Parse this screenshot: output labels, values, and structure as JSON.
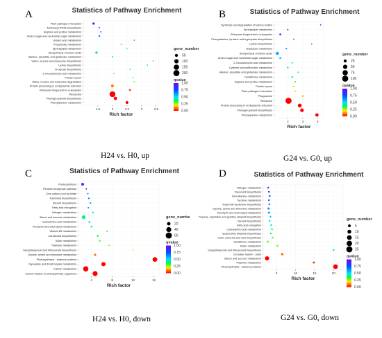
{
  "chart_data": [
    {
      "type": "scatter",
      "panel_label": "A",
      "title": "Statistics of Pathway Enrichment",
      "xlabel": "Rich factor",
      "caption": "H24 vs. H0, up",
      "xticks": [
        1.5,
        2.0,
        2.5,
        3.0,
        3.5
      ],
      "xtick_labels": [
        "1.5",
        "2",
        "2.5",
        "3",
        "3.5"
      ],
      "xlim": [
        1.0,
        3.6
      ],
      "size_title": "gene_number",
      "size_levels": [
        50,
        100,
        150,
        200
      ],
      "color_title": "qvalue",
      "color_levels": [
        1.0,
        0.75,
        0.5,
        0.25,
        0.0
      ],
      "color_level_labels": [
        "1.00",
        "0.75",
        "0.50",
        "0.25",
        "0.00"
      ],
      "size_range": [
        0,
        200
      ],
      "points": [
        {
          "category": "Plant-pathogen interaction",
          "x": 1.35,
          "gene_number": 28,
          "qvalue": 0.95
        },
        {
          "category": "Aminoacyl-tRNA biosynthesis",
          "x": 1.55,
          "gene_number": 10,
          "qvalue": 0.8
        },
        {
          "category": "Arginine and proline metabolism",
          "x": 1.6,
          "gene_number": 8,
          "qvalue": 0.75
        },
        {
          "category": "Amino sugar and nucleotide sugar metabolism",
          "x": 1.55,
          "gene_number": 14,
          "qvalue": 0.7
        },
        {
          "category": "Linoleic acid metabolism",
          "x": 2.75,
          "gene_number": 5,
          "qvalue": 0.6
        },
        {
          "category": "Propanoate metabolism",
          "x": 2.3,
          "gene_number": 6,
          "qvalue": 0.55
        },
        {
          "category": "Sphingolipid metabolism",
          "x": 2.5,
          "gene_number": 7,
          "qvalue": 0.5
        },
        {
          "category": "Biosynthesis of amino acids",
          "x": 1.45,
          "gene_number": 30,
          "qvalue": 0.45
        },
        {
          "category": "Alanine, aspartate and glutamate metabolism",
          "x": 2.0,
          "gene_number": 10,
          "qvalue": 0.45
        },
        {
          "category": "Valine, leucine and isoleucine biosynthesis",
          "x": 3.4,
          "gene_number": 5,
          "qvalue": 0.4
        },
        {
          "category": "Lysine biosynthesis",
          "x": 3.2,
          "gene_number": 5,
          "qvalue": 0.35
        },
        {
          "category": "N-Glycan biosynthesis",
          "x": 2.6,
          "gene_number": 8,
          "qvalue": 0.35
        },
        {
          "category": "2-Oxocarboxylic acid metabolism",
          "x": 2.05,
          "gene_number": 10,
          "qvalue": 0.3
        },
        {
          "category": "Protein export",
          "x": 2.7,
          "gene_number": 7,
          "qvalue": 0.3
        },
        {
          "category": "Valine, leucine and isoleucine degradation",
          "x": 2.75,
          "gene_number": 10,
          "qvalue": 0.25
        },
        {
          "category": "Protein processing in endoplasmic reticulum",
          "x": 2.0,
          "gene_number": 40,
          "qvalue": 0.1
        },
        {
          "category": "Ribosome biogenesis in eukaryotes",
          "x": 2.6,
          "gene_number": 20,
          "qvalue": 0.05
        },
        {
          "category": "Ribosome",
          "x": 2.0,
          "gene_number": 180,
          "qvalue": 0.0
        },
        {
          "category": "Phenylpropanoid biosynthesis",
          "x": 2.1,
          "gene_number": 60,
          "qvalue": 0.0
        },
        {
          "category": "Phenylalanine metabolism",
          "x": 2.5,
          "gene_number": 45,
          "qvalue": 0.0
        }
      ]
    },
    {
      "type": "scatter",
      "panel_label": "B",
      "title": "Statistics of Pathway Enrichment",
      "xlabel": "Rich factor",
      "caption": "G24 vs. G0, up",
      "xticks": [
        2,
        3,
        4
      ],
      "xtick_labels": [
        "2",
        "3",
        "4"
      ],
      "xlim": [
        1.1,
        4.4
      ],
      "size_title": "gene_number",
      "size_levels": [
        25,
        50,
        75,
        100
      ],
      "color_title": "qvalue",
      "color_levels": [
        1.0,
        0.75,
        0.5,
        0.25,
        0.0
      ],
      "color_level_labels": [
        "1.00",
        "0.75",
        "0.50",
        "0.25",
        "0.00"
      ],
      "size_range": [
        0,
        100
      ],
      "points": [
        {
          "category": "Synthesis and degradation of ketone bodies",
          "x": 4.2,
          "gene_number": 3,
          "qvalue": 0.9
        },
        {
          "category": "Sphingolipid metabolism",
          "x": 2.0,
          "gene_number": 5,
          "qvalue": 0.85
        },
        {
          "category": "Ribosome biogenesis in eukaryotes",
          "x": 1.5,
          "gene_number": 10,
          "qvalue": 0.8
        },
        {
          "category": "Phenylalanine, tyrosine and tryptophan biosynthesis",
          "x": 2.4,
          "gene_number": 4,
          "qvalue": 0.75
        },
        {
          "category": "Lysine biosynthesis",
          "x": 3.6,
          "gene_number": 3,
          "qvalue": 0.7
        },
        {
          "category": "Galactose metabolism",
          "x": 1.9,
          "gene_number": 6,
          "qvalue": 0.65
        },
        {
          "category": "Biosynthesis of amino acids",
          "x": 1.3,
          "gene_number": 25,
          "qvalue": 0.6
        },
        {
          "category": "Amino sugar and nucleotide sugar metabolism",
          "x": 1.5,
          "gene_number": 10,
          "qvalue": 0.55
        },
        {
          "category": "2-Oxocarboxylic acid metabolism",
          "x": 2.3,
          "gene_number": 6,
          "qvalue": 0.5
        },
        {
          "category": "Cysteine and methionine metabolism",
          "x": 2.0,
          "gene_number": 7,
          "qvalue": 0.45
        },
        {
          "category": "Alanine, aspartate and glutamate metabolism",
          "x": 2.7,
          "gene_number": 5,
          "qvalue": 0.4
        },
        {
          "category": "Glutathione metabolism",
          "x": 2.3,
          "gene_number": 8,
          "qvalue": 0.35
        },
        {
          "category": "Arginine and proline metabolism",
          "x": 2.5,
          "gene_number": 7,
          "qvalue": 0.3
        },
        {
          "category": "Protein export",
          "x": 2.4,
          "gene_number": 6,
          "qvalue": 0.25
        },
        {
          "category": "Plant-pathogen interaction",
          "x": 2.5,
          "gene_number": 8,
          "qvalue": 0.2
        },
        {
          "category": "Phagosome",
          "x": 3.0,
          "gene_number": 8,
          "qvalue": 0.15
        },
        {
          "category": "Ribosome",
          "x": 2.05,
          "gene_number": 100,
          "qvalue": 0.0
        },
        {
          "category": "Protein processing in endoplasmic reticulum",
          "x": 2.8,
          "gene_number": 40,
          "qvalue": 0.0
        },
        {
          "category": "Phenylpropanoid biosynthesis",
          "x": 2.95,
          "gene_number": 35,
          "qvalue": 0.0
        },
        {
          "category": "Phenylalanine metabolism",
          "x": 3.95,
          "gene_number": 30,
          "qvalue": 0.0
        }
      ]
    },
    {
      "type": "scatter",
      "panel_label": "C",
      "title": "Statistics of Pathway Enrichment",
      "xlabel": "Rich factor",
      "caption": "H24 vs. H0, down",
      "xticks": [
        4,
        8,
        12,
        16
      ],
      "xtick_labels": [
        "4",
        "8",
        "12",
        "16"
      ],
      "xlim": [
        1.5,
        17.0
      ],
      "size_title": "gene_numbe",
      "size_levels": [
        20,
        40,
        60
      ],
      "color_title": "qvalue",
      "color_levels": [
        1.0,
        0.75,
        0.5,
        0.25,
        0.0
      ],
      "color_level_labels": [
        "1.00",
        "0.75",
        "0.50",
        "0.25",
        "0.00"
      ],
      "size_range": [
        0,
        60
      ],
      "points": [
        {
          "category": "Photosynthesis",
          "x": 2.3,
          "gene_number": 12,
          "qvalue": 0.9
        },
        {
          "category": "Pentose phosphate pathway",
          "x": 3.0,
          "gene_number": 3,
          "qvalue": 0.75
        },
        {
          "category": "One carbon pool by folate",
          "x": 3.3,
          "gene_number": 3,
          "qvalue": 0.72
        },
        {
          "category": "Flavonoid biosynthesis",
          "x": 3.5,
          "gene_number": 4,
          "qvalue": 0.68
        },
        {
          "category": "Steroid biosynthesis",
          "x": 3.8,
          "gene_number": 4,
          "qvalue": 0.62
        },
        {
          "category": "Fatty acid elongation",
          "x": 3.4,
          "gene_number": 4,
          "qvalue": 0.58
        },
        {
          "category": "Nitrogen metabolism",
          "x": 4.3,
          "gene_number": 4,
          "qvalue": 0.52
        },
        {
          "category": "Starch and sucrose metabolism",
          "x": 2.5,
          "gene_number": 22,
          "qvalue": 0.4
        },
        {
          "category": "Cyanoamino acid metabolism",
          "x": 3.6,
          "gene_number": 5,
          "qvalue": 0.45
        },
        {
          "category": "Porphyrin and chlorophyll metabolism",
          "x": 4.0,
          "gene_number": 5,
          "qvalue": 0.42
        },
        {
          "category": "Vitamin B6 metabolism",
          "x": 7.0,
          "gene_number": 3,
          "qvalue": 0.4
        },
        {
          "category": "Carotenoid biosynthesis",
          "x": 5.2,
          "gene_number": 5,
          "qvalue": 0.35
        },
        {
          "category": "Sulfur metabolism",
          "x": 5.6,
          "gene_number": 5,
          "qvalue": 0.3
        },
        {
          "category": "Thiamine metabolism",
          "x": 7.4,
          "gene_number": 4,
          "qvalue": 0.25
        },
        {
          "category": "Sesquiterpenoid and triterpenoid biosynthesis",
          "x": 12.0,
          "gene_number": 3,
          "qvalue": 0.2
        },
        {
          "category": "Glycine, serine and threonine metabolism",
          "x": 4.7,
          "gene_number": 8,
          "qvalue": 0.1
        },
        {
          "category": "Photosynthesis - antenna proteins",
          "x": 16.2,
          "gene_number": 35,
          "qvalue": 0.0
        },
        {
          "category": "Glyoxylate and dicarboxylate metabolism",
          "x": 6.3,
          "gene_number": 28,
          "qvalue": 0.0
        },
        {
          "category": "Carbon metabolism",
          "x": 2.9,
          "gene_number": 45,
          "qvalue": 0.0
        },
        {
          "category": "Carbon fixation in photosynthetic organisms",
          "x": 4.7,
          "gene_number": 40,
          "qvalue": 0.0
        }
      ]
    },
    {
      "type": "scatter",
      "panel_label": "D",
      "title": "Statistics of Pathway Enrichment",
      "xlabel": "Rich factor",
      "caption": "G24 vs. G0, down",
      "xticks": [
        5,
        10,
        15,
        20
      ],
      "xtick_labels": [
        "5",
        "10",
        "15",
        "20"
      ],
      "xlim": [
        1.5,
        22.5
      ],
      "size_title": "gene_number",
      "size_levels": [
        5,
        10,
        15,
        20,
        25
      ],
      "color_title": "qvalue",
      "color_levels": [
        1.0,
        0.75,
        0.5,
        0.25,
        0.0
      ],
      "color_level_labels": [
        "1.00",
        "0.75",
        "0.50",
        "0.25",
        "0.00"
      ],
      "size_range": [
        0,
        25
      ],
      "points": [
        {
          "category": "Nitrogen metabolism",
          "x": 2.8,
          "gene_number": 2,
          "qvalue": 0.85
        },
        {
          "category": "Flavonoid biosynthesis",
          "x": 3.0,
          "gene_number": 2,
          "qvalue": 0.8
        },
        {
          "category": "beta-Alanine metabolism",
          "x": 3.2,
          "gene_number": 2,
          "qvalue": 0.78
        },
        {
          "category": "Tyrosine metabolism",
          "x": 3.0,
          "gene_number": 2,
          "qvalue": 0.75
        },
        {
          "category": "Terpenoid backbone biosynthesis",
          "x": 3.1,
          "gene_number": 2,
          "qvalue": 0.7
        },
        {
          "category": "Glycine, serine and threonine metabolism",
          "x": 2.9,
          "gene_number": 3,
          "qvalue": 0.65
        },
        {
          "category": "Porphyrin and chlorophyll metabolism",
          "x": 3.0,
          "gene_number": 3,
          "qvalue": 0.6
        },
        {
          "category": "Tropane, piperidine and pyridine alkaloid biosynthesis",
          "x": 3.4,
          "gene_number": 2,
          "qvalue": 0.55
        },
        {
          "category": "Steroid biosynthesis",
          "x": 3.2,
          "gene_number": 2,
          "qvalue": 0.5
        },
        {
          "category": "Fatty acid elongation",
          "x": 3.6,
          "gene_number": 2,
          "qvalue": 0.45
        },
        {
          "category": "Cyanoamino acid metabolism",
          "x": 3.8,
          "gene_number": 2,
          "qvalue": 0.4
        },
        {
          "category": "Isoquinoline alkaloid biosynthesis",
          "x": 3.5,
          "gene_number": 2,
          "qvalue": 0.35
        },
        {
          "category": "Cutin, suberine and wax biosynthesis",
          "x": 4.0,
          "gene_number": 2,
          "qvalue": 0.3
        },
        {
          "category": "Glutathione metabolism",
          "x": 2.7,
          "gene_number": 3,
          "qvalue": 0.28
        },
        {
          "category": "Sulfur metabolism",
          "x": 5.2,
          "gene_number": 3,
          "qvalue": 0.25
        },
        {
          "category": "Sesquiterpenoid and triterpenoid biosynthesis",
          "x": 20.0,
          "gene_number": 2,
          "qvalue": 0.4
        },
        {
          "category": "Circadian rhythm - plant",
          "x": 6.5,
          "gene_number": 4,
          "qvalue": 0.1
        },
        {
          "category": "Starch and sucrose metabolism",
          "x": 2.5,
          "gene_number": 12,
          "qvalue": 0.0
        },
        {
          "category": "Thiamine metabolism",
          "x": 14.8,
          "gene_number": 3,
          "qvalue": 0.05
        },
        {
          "category": "Photosynthesis - antenna proteins",
          "x": 20.5,
          "gene_number": 15,
          "qvalue": 0.0
        }
      ]
    }
  ]
}
